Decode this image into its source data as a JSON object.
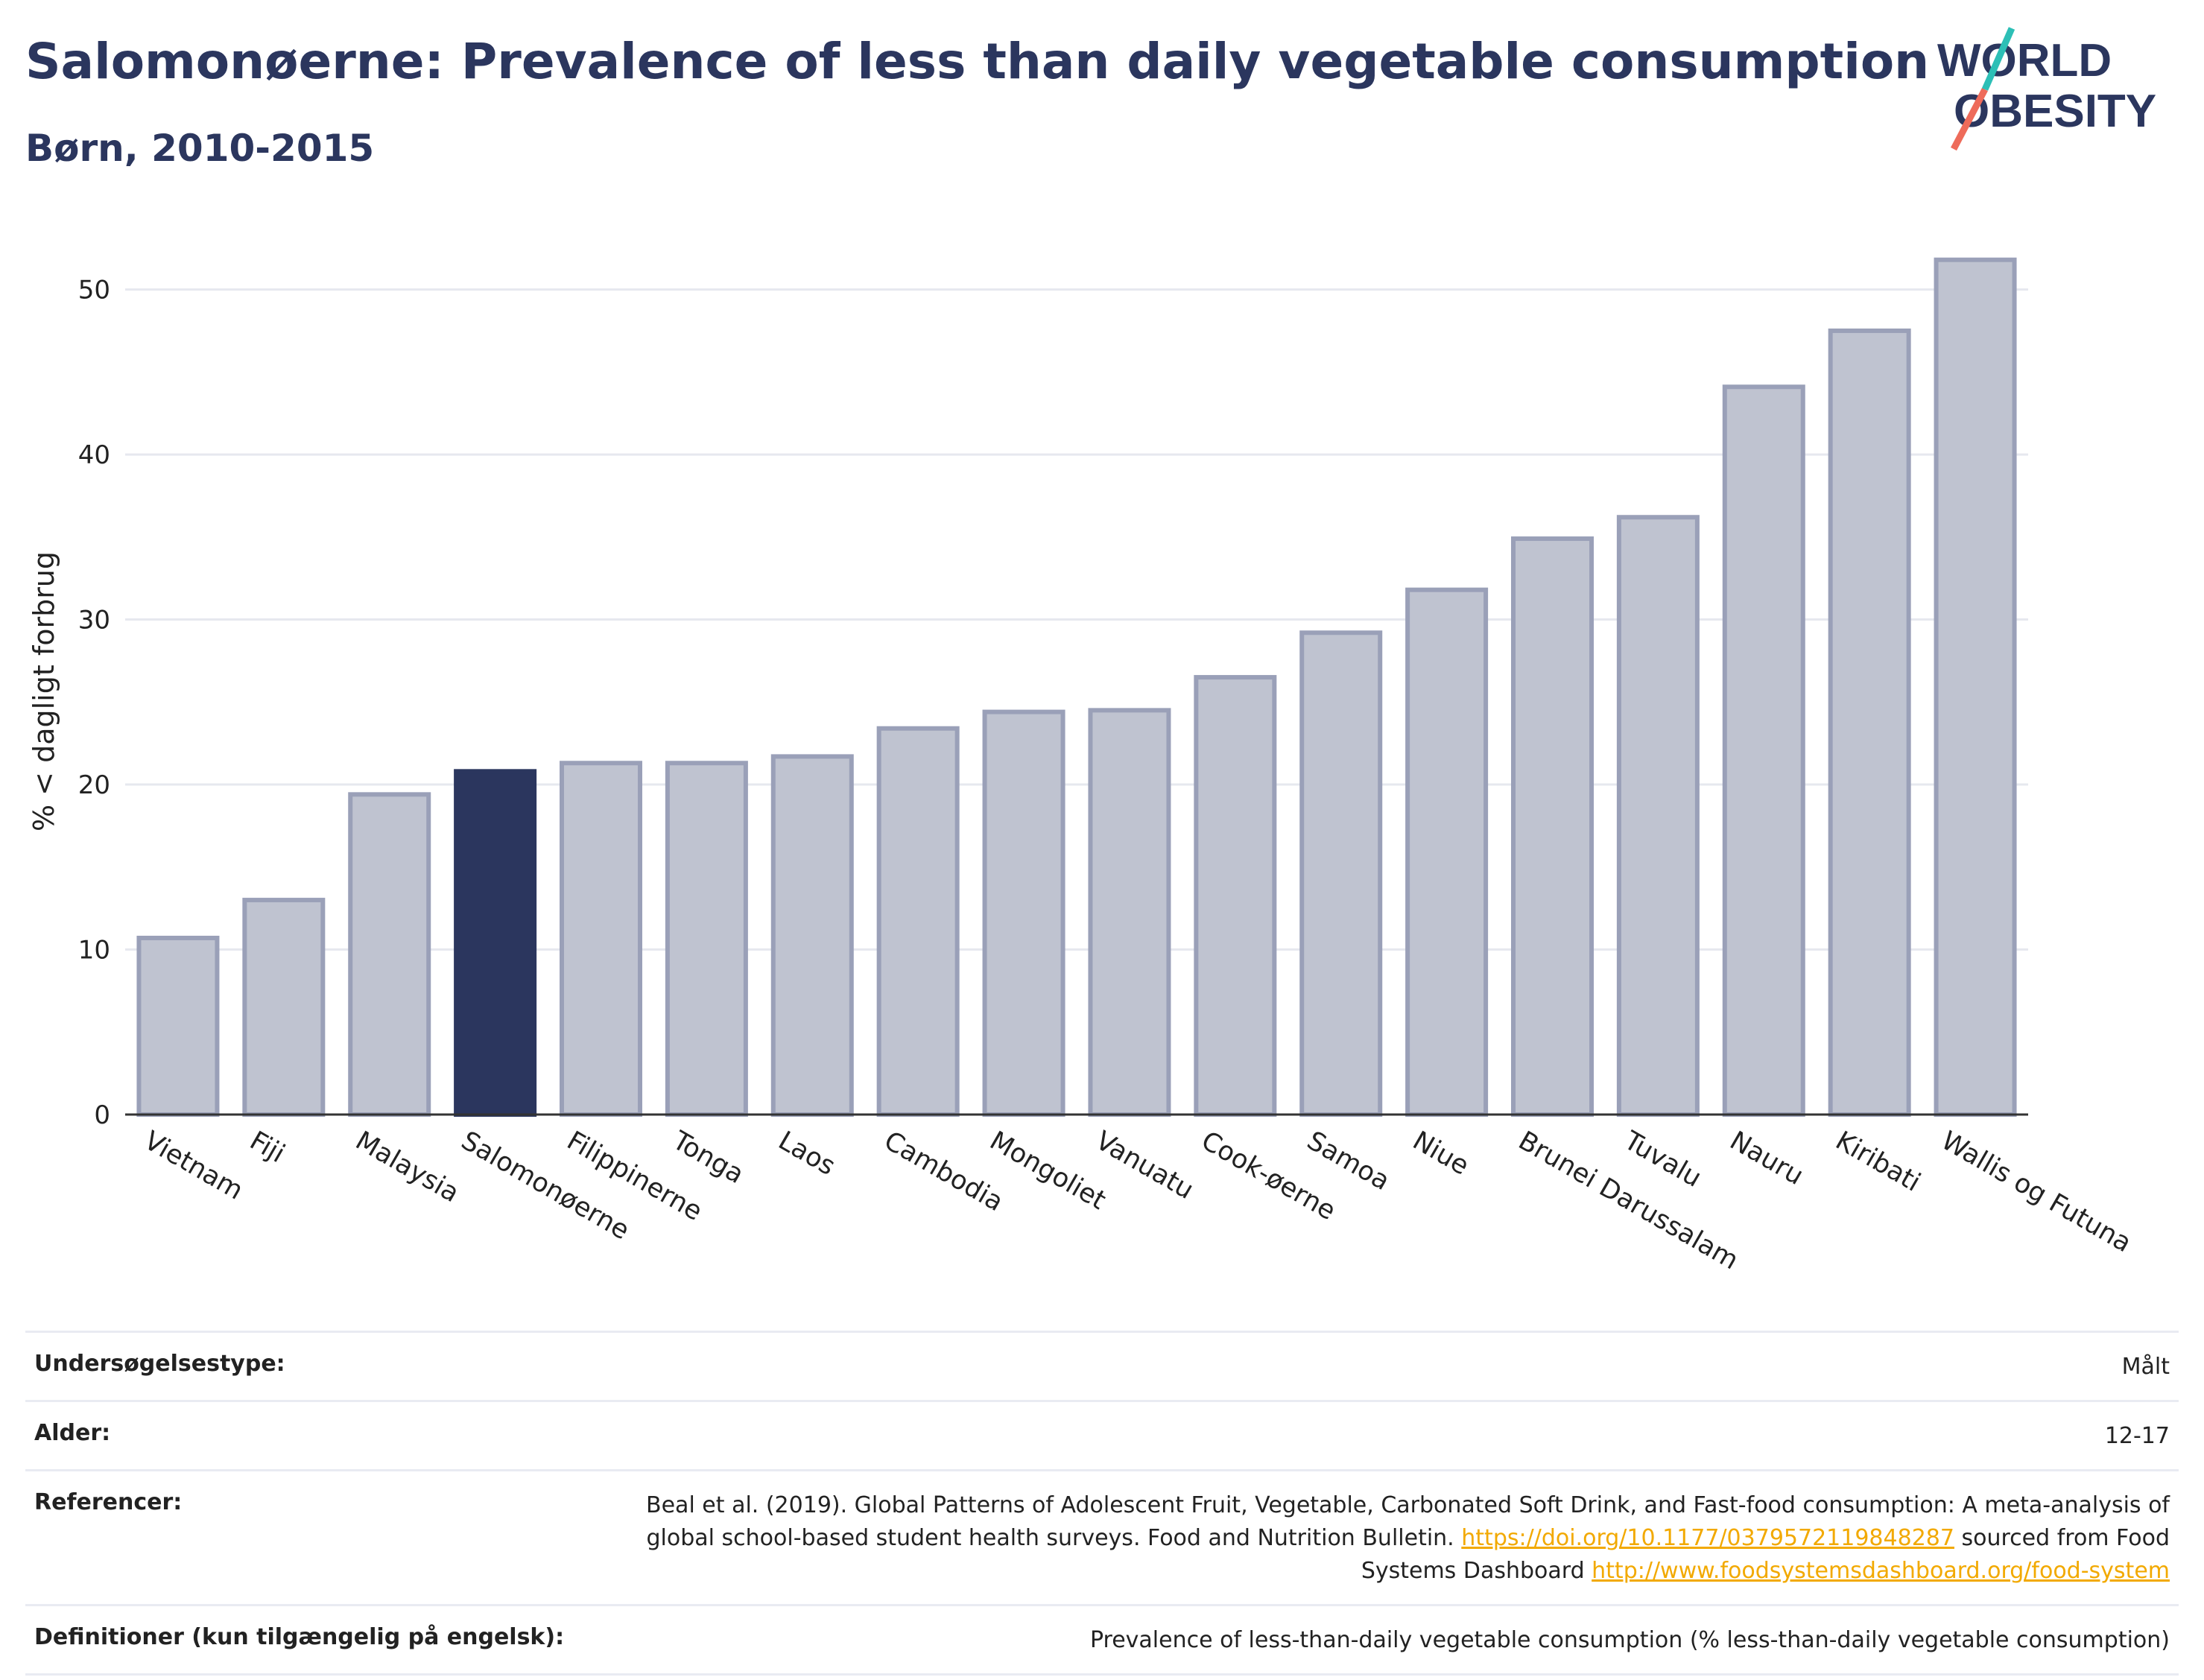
{
  "title": "Salomonøerne: Prevalence of less than daily vegetable consumption",
  "subtitle": "Børn, 2010-2015",
  "logo": {
    "line1": "WORLD",
    "line2": "OBESITY"
  },
  "colors": {
    "highlight": "#2b365e",
    "bar": "#bfc3d0",
    "bar_outline": "#9aa0b8",
    "title": "#2b365e",
    "link": "#f2a900"
  },
  "chart_data": {
    "type": "bar",
    "categories": [
      "Vietnam",
      "Fiji",
      "Malaysia",
      "Salomonøerne",
      "Filippinerne",
      "Tonga",
      "Laos",
      "Cambodia",
      "Mongoliet",
      "Vanuatu",
      "Cook-øerne",
      "Samoa",
      "Niue",
      "Brunei Darussalam",
      "Tuvalu",
      "Nauru",
      "Kiribati",
      "Wallis og Futuna"
    ],
    "values": [
      10.7,
      13.0,
      19.4,
      20.8,
      21.3,
      21.3,
      21.7,
      23.4,
      24.4,
      24.5,
      26.5,
      29.2,
      31.8,
      34.9,
      36.2,
      44.1,
      47.5,
      51.8
    ],
    "highlight": "Salomonøerne",
    "ylabel": "% < dagligt forbrug",
    "xlabel": "",
    "ylim": [
      0,
      54
    ],
    "yticks": [
      0,
      10,
      20,
      30,
      40,
      50
    ],
    "grid": true
  },
  "info": {
    "survey_type": {
      "label": "Undersøgelsestype:",
      "value": "Målt"
    },
    "age": {
      "label": "Alder:",
      "value": "12-17"
    },
    "references": {
      "label": "Referencer:",
      "text1": "Beal et al. (2019). Global Patterns of Adolescent Fruit, Vegetable, Carbonated Soft Drink, and Fast-food consumption: A meta-analysis of global school-based student health surveys. Food and Nutrition Bulletin.",
      "link1": "https://doi.org/10.1177/0379572119848287",
      "text2": "sourced from Food Systems Dashboard",
      "link2": "http://www.foodsystemsdashboard.org/food-system"
    },
    "definitions": {
      "label": "Definitioner (kun tilgængelig på engelsk):",
      "value": "Prevalence of less-than-daily vegetable consumption (% less-than-daily vegetable consumption)"
    }
  }
}
